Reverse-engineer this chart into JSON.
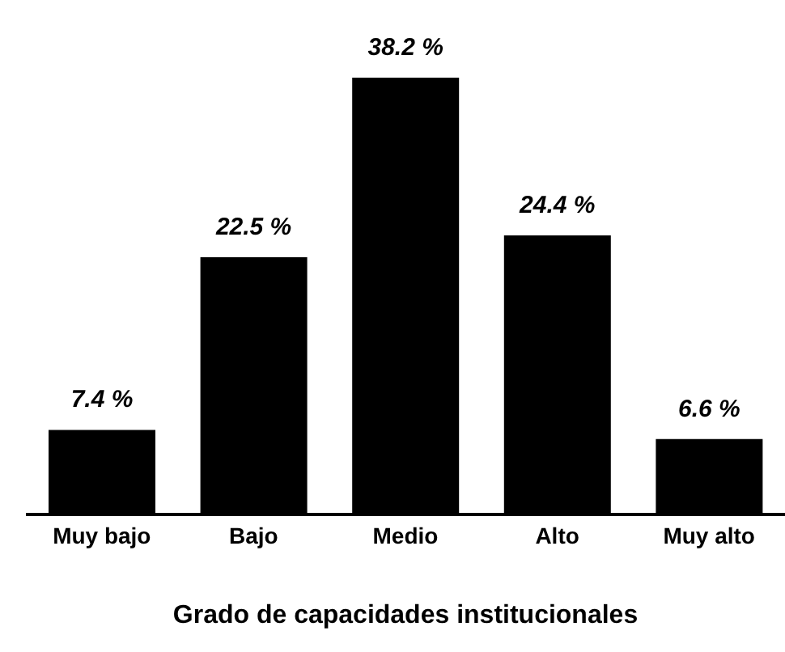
{
  "chart_data": {
    "type": "bar",
    "xlabel": "Grado de capacidades institucionales",
    "categories": [
      "Muy bajo",
      "Bajo",
      "Medio",
      "Alto",
      "Muy alto"
    ],
    "values": [
      7.4,
      22.5,
      38.2,
      24.4,
      6.6
    ],
    "value_labels": [
      "7.4 %",
      "22.5 %",
      "38.2 %",
      "24.4 %",
      "6.6 %"
    ],
    "color": "#000000",
    "tick_labels": "x",
    "grid": false
  }
}
